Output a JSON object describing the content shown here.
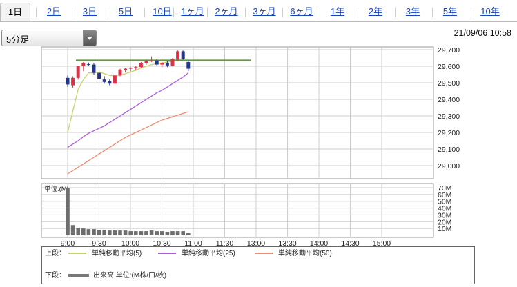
{
  "tabs": [
    {
      "label": "1日",
      "active": true
    },
    {
      "label": "2日"
    },
    {
      "label": "3日"
    },
    {
      "label": "5日"
    },
    {
      "label": "10日"
    },
    {
      "label": "1ヶ月"
    },
    {
      "label": "2ヶ月"
    },
    {
      "label": "3ヶ月"
    },
    {
      "label": "6ヶ月"
    },
    {
      "label": "1年"
    },
    {
      "label": "2年"
    },
    {
      "label": "3年"
    },
    {
      "label": "5年"
    },
    {
      "label": "10年"
    }
  ],
  "interval_select": {
    "value": "5分足"
  },
  "timestamp": "21/09/06 10:58",
  "legend": {
    "upper_label": "上段：",
    "lower_label": "下段：",
    "ma5": "単純移動平均(5)",
    "ma25": "単純移動平均(25)",
    "ma50": "単純移動平均(50)",
    "volume": "出来高 単位:(M株/口/枚)"
  },
  "colors": {
    "up": "#d9334a",
    "down": "#24358e",
    "ma5": "#c7d36a",
    "ma25": "#a95ed6",
    "ma50": "#ee8a6e",
    "hline": "#5e9b3e",
    "volume": "#6e6e6e",
    "grid": "#cccccc"
  },
  "chart_data": [
    {
      "type": "candlestick",
      "x_tick_labels": [
        "9:00",
        "9:30",
        "10:00",
        "10:30",
        "11:00",
        "11:30",
        "13:00",
        "13:30",
        "14:00",
        "14:30",
        "15:00"
      ],
      "y_tick_labels": [
        "29,000",
        "29,100",
        "29,200",
        "29,300",
        "29,400",
        "29,500",
        "29,600",
        "29,700"
      ],
      "ylim": [
        28950,
        29720
      ],
      "horizontal_line": 29636,
      "candles": [
        {
          "t": "9:00",
          "o": 29530,
          "h": 29545,
          "l": 29475,
          "c": 29490
        },
        {
          "t": "9:05",
          "o": 29485,
          "h": 29540,
          "l": 29470,
          "c": 29530
        },
        {
          "t": "9:10",
          "o": 29530,
          "h": 29600,
          "l": 29520,
          "c": 29600
        },
        {
          "t": "9:15",
          "o": 29600,
          "h": 29625,
          "l": 29570,
          "c": 29620
        },
        {
          "t": "9:20",
          "o": 29612,
          "h": 29622,
          "l": 29600,
          "c": 29608
        },
        {
          "t": "9:25",
          "o": 29610,
          "h": 29620,
          "l": 29550,
          "c": 29560
        },
        {
          "t": "9:30",
          "o": 29560,
          "h": 29580,
          "l": 29520,
          "c": 29525
        },
        {
          "t": "9:35",
          "o": 29520,
          "h": 29540,
          "l": 29495,
          "c": 29505
        },
        {
          "t": "9:40",
          "o": 29510,
          "h": 29520,
          "l": 29485,
          "c": 29495
        },
        {
          "t": "9:45",
          "o": 29495,
          "h": 29550,
          "l": 29490,
          "c": 29545
        },
        {
          "t": "9:50",
          "o": 29545,
          "h": 29585,
          "l": 29540,
          "c": 29580
        },
        {
          "t": "9:55",
          "o": 29575,
          "h": 29590,
          "l": 29565,
          "c": 29585
        },
        {
          "t": "10:00",
          "o": 29585,
          "h": 29595,
          "l": 29570,
          "c": 29590
        },
        {
          "t": "10:05",
          "o": 29590,
          "h": 29600,
          "l": 29575,
          "c": 29595
        },
        {
          "t": "10:10",
          "o": 29595,
          "h": 29625,
          "l": 29590,
          "c": 29620
        },
        {
          "t": "10:15",
          "o": 29618,
          "h": 29640,
          "l": 29610,
          "c": 29630
        },
        {
          "t": "10:20",
          "o": 29630,
          "h": 29660,
          "l": 29625,
          "c": 29633
        },
        {
          "t": "10:25",
          "o": 29635,
          "h": 29645,
          "l": 29600,
          "c": 29610
        },
        {
          "t": "10:30",
          "o": 29610,
          "h": 29625,
          "l": 29595,
          "c": 29620
        },
        {
          "t": "10:35",
          "o": 29620,
          "h": 29630,
          "l": 29595,
          "c": 29605
        },
        {
          "t": "10:40",
          "o": 29600,
          "h": 29650,
          "l": 29598,
          "c": 29645
        },
        {
          "t": "10:45",
          "o": 29640,
          "h": 29695,
          "l": 29635,
          "c": 29690
        },
        {
          "t": "10:50",
          "o": 29690,
          "h": 29695,
          "l": 29640,
          "c": 29645
        },
        {
          "t": "10:55",
          "o": 29625,
          "h": 29635,
          "l": 29570,
          "c": 29585
        }
      ],
      "series": [
        {
          "name": "単純移動平均(5)",
          "values": [
            29200,
            29330,
            29460,
            29520,
            29560,
            29560,
            29565,
            29555,
            29545,
            29540,
            29545,
            29555,
            29565,
            29575,
            29590,
            29600,
            29610,
            29615,
            29620,
            29625,
            29630,
            29635,
            29640,
            29628
          ]
        },
        {
          "name": "単純移動平均(25)",
          "values": [
            29110,
            29130,
            29150,
            29175,
            29195,
            29210,
            29225,
            29240,
            29260,
            29280,
            29300,
            29320,
            29340,
            29360,
            29380,
            29400,
            29420,
            29440,
            29455,
            29475,
            29495,
            29515,
            29535,
            29560
          ]
        },
        {
          "name": "単純移動平均(50)",
          "values": [
            28950,
            28970,
            28990,
            29010,
            29030,
            29050,
            29070,
            29090,
            29110,
            29130,
            29150,
            29170,
            29185,
            29200,
            29215,
            29230,
            29245,
            29260,
            29275,
            29285,
            29295,
            29305,
            29315,
            29325
          ]
        }
      ]
    },
    {
      "type": "bar",
      "unit_label": "単位:(M)",
      "y_tick_labels": [
        "10M",
        "20M",
        "30M",
        "40M",
        "50M",
        "60M",
        "70M"
      ],
      "ylim": [
        0,
        70
      ],
      "values": [
        70,
        15,
        11,
        10,
        9,
        9,
        8,
        8,
        7,
        7,
        7,
        7,
        6,
        6,
        6,
        6,
        7,
        6,
        6,
        5,
        6,
        6,
        6,
        3
      ]
    }
  ]
}
